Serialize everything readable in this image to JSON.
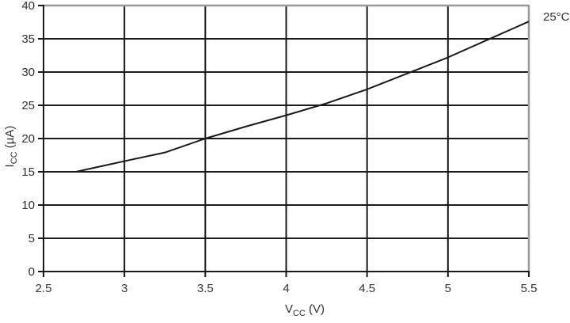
{
  "annotation": {
    "temperature_label": "25°C"
  },
  "chart_data": {
    "type": "line",
    "title": "",
    "xlabel": "VCC (V)",
    "ylabel": "ICC (µA)",
    "xlabel_parts": {
      "main": "V",
      "sub": "CC",
      "unit": " (V)"
    },
    "ylabel_parts": {
      "main": "I",
      "sub": "CC",
      "unit": " (µA)"
    },
    "xlim": [
      2.5,
      5.5
    ],
    "ylim": [
      0,
      40
    ],
    "x_ticks": [
      2.5,
      3,
      3.5,
      4,
      4.5,
      5,
      5.5
    ],
    "x_tick_labels": [
      "2.5",
      "3",
      "3.5",
      "4",
      "4.5",
      "5",
      "5.5"
    ],
    "y_ticks": [
      0,
      5,
      10,
      15,
      20,
      25,
      30,
      35,
      40
    ],
    "y_tick_labels": [
      "0",
      "5",
      "10",
      "15",
      "20",
      "25",
      "30",
      "35",
      "40"
    ],
    "grid": true,
    "legend_position": "top-right-outside",
    "series": [
      {
        "name": "25°C",
        "x": [
          2.7,
          3.0,
          3.25,
          3.5,
          3.75,
          4.0,
          4.25,
          4.5,
          4.75,
          5.0,
          5.25,
          5.5
        ],
        "y": [
          15.0,
          16.6,
          17.9,
          20.0,
          21.8,
          23.5,
          25.3,
          27.4,
          29.8,
          32.2,
          34.9,
          37.6
        ]
      }
    ],
    "colors": {
      "grid": "#1a1a1a",
      "axis": "#1a1a1a",
      "frame": "#999999",
      "line": "#1a1a1a",
      "text": "#333333",
      "background": "#ffffff"
    }
  }
}
